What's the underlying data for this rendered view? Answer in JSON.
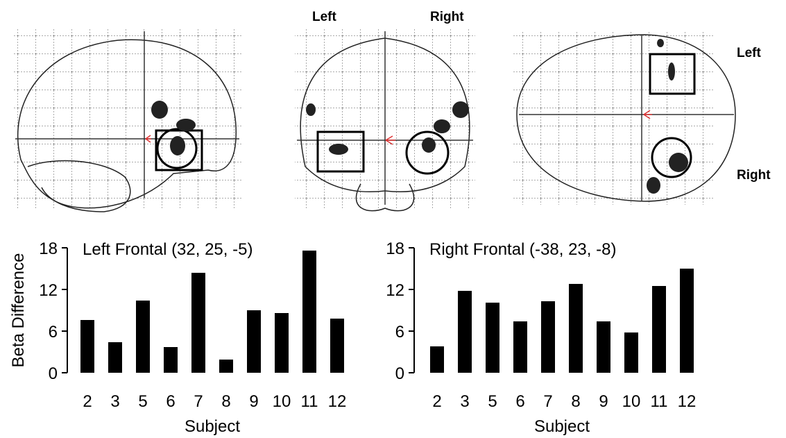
{
  "brain_labels": {
    "coronal": [
      "Left",
      "Right"
    ],
    "axial": [
      "Left",
      "Right"
    ]
  },
  "chart_data": [
    {
      "type": "bar",
      "title": "Left Frontal (32, 25, -5)",
      "xlabel": "Subject",
      "ylabel": "Beta Difference",
      "categories": [
        "2",
        "3",
        "5",
        "6",
        "7",
        "8",
        "9",
        "10",
        "11",
        "12"
      ],
      "values": [
        7.6,
        4.4,
        10.4,
        3.7,
        14.4,
        1.9,
        9.0,
        8.6,
        17.6,
        7.8
      ],
      "color": "#000000",
      "ylim": [
        0,
        18
      ],
      "yticks": [
        0,
        6,
        12,
        18
      ]
    },
    {
      "type": "bar",
      "title": "Right Frontal (-38, 23, -8)",
      "xlabel": "Subject",
      "categories": [
        "2",
        "3",
        "5",
        "6",
        "7",
        "8",
        "9",
        "10",
        "11",
        "12"
      ],
      "values": [
        3.8,
        11.8,
        10.1,
        7.4,
        10.3,
        12.8,
        7.4,
        5.8,
        12.5,
        15.0
      ],
      "color": "#000000",
      "ylim": [
        0,
        18
      ],
      "yticks": [
        0,
        6,
        12,
        18
      ]
    }
  ]
}
